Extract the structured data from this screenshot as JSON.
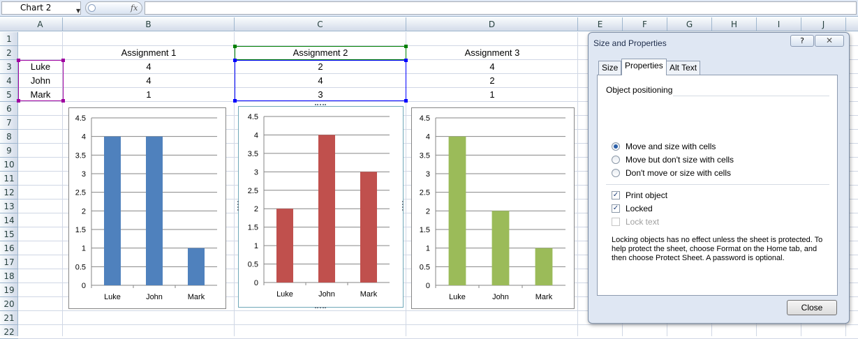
{
  "formula_bar": {
    "name_box": "Chart 2",
    "fx_label": "fx",
    "formula_value": ""
  },
  "columns": [
    "A",
    "B",
    "C",
    "D",
    "E",
    "F",
    "G",
    "H",
    "I",
    "J"
  ],
  "rows": [
    "1",
    "2",
    "3",
    "4",
    "5",
    "6",
    "7",
    "8",
    "9",
    "10",
    "11",
    "12",
    "13",
    "14",
    "15",
    "16",
    "17",
    "18",
    "19",
    "20",
    "21",
    "22"
  ],
  "sheet": {
    "headers": [
      "Assignment 1",
      "Assignment 2",
      "Assignment 3"
    ],
    "names": [
      "Luke",
      "John",
      "Mark"
    ],
    "values": [
      [
        "4",
        "2",
        "4"
      ],
      [
        "4",
        "4",
        "2"
      ],
      [
        "1",
        "3",
        "1"
      ]
    ]
  },
  "chart_data": [
    {
      "type": "bar",
      "title": "",
      "categories": [
        "Luke",
        "John",
        "Mark"
      ],
      "values": [
        4,
        4,
        1
      ],
      "ylim": [
        0,
        4.5
      ],
      "yticks": [
        "4.5",
        "4",
        "3.5",
        "3",
        "2.5",
        "2",
        "1.5",
        "1",
        "0.5",
        "0"
      ],
      "color": "#4f81bd",
      "grid": true
    },
    {
      "type": "bar",
      "title": "",
      "categories": [
        "Luke",
        "John",
        "Mark"
      ],
      "values": [
        2,
        4,
        3
      ],
      "ylim": [
        0,
        4.5
      ],
      "yticks": [
        "4.5",
        "4",
        "3.5",
        "3",
        "2.5",
        "2",
        "1.5",
        "1",
        "0.5",
        "0"
      ],
      "color": "#c0504d",
      "grid": true
    },
    {
      "type": "bar",
      "title": "",
      "categories": [
        "Luke",
        "John",
        "Mark"
      ],
      "values": [
        4,
        2,
        1
      ],
      "ylim": [
        0,
        4.5
      ],
      "yticks": [
        "4.5",
        "4",
        "3.5",
        "3",
        "2.5",
        "2",
        "1.5",
        "1",
        "0.5",
        "0"
      ],
      "color": "#9bbb59",
      "grid": true
    }
  ],
  "dialog": {
    "title": "Size and Properties",
    "help": "?",
    "close_x": "✕",
    "tabs": [
      "Size",
      "Properties",
      "Alt Text"
    ],
    "active_tab": "Properties",
    "group_title": "Object positioning",
    "radios": [
      {
        "label": "Move and size with cells",
        "checked": true
      },
      {
        "label": "Move but don't size with cells",
        "checked": false
      },
      {
        "label": "Don't move or size with cells",
        "checked": false
      }
    ],
    "checks": [
      {
        "label": "Print object",
        "checked": true,
        "disabled": false
      },
      {
        "label": "Locked",
        "checked": true,
        "disabled": false
      },
      {
        "label": "Lock text",
        "checked": false,
        "disabled": true
      }
    ],
    "info": "Locking objects has no effect unless the sheet is protected. To help protect the sheet, choose Format on the Home tab, and then choose Protect Sheet. A password is optional.",
    "close_button": "Close"
  }
}
